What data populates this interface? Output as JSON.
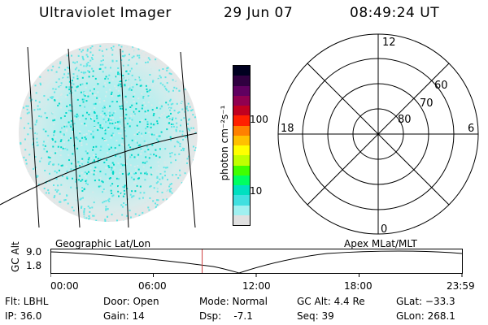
{
  "header": {
    "instrument": "Ultraviolet Imager",
    "date": "29 Jun 07",
    "time": "08:49:24 UT"
  },
  "colorbar": {
    "unit_label": "photon cm⁻²s⁻¹",
    "ticks": [
      "100",
      "10"
    ],
    "colors": [
      "#000020",
      "#300040",
      "#600060",
      "#900050",
      "#c00020",
      "#ff2000",
      "#ff8000",
      "#ffc000",
      "#ffff00",
      "#c0ff00",
      "#40ff00",
      "#00ff60",
      "#00e0c0",
      "#40e0e0",
      "#a0f0f0",
      "#e0e0e0"
    ]
  },
  "polar_plot": {
    "mlt_labels": {
      "top": "12",
      "left": "18",
      "right": "6",
      "bottom": "0"
    },
    "lat_labels": [
      "60",
      "70",
      "80"
    ]
  },
  "altitude_plot": {
    "left_title": "Geographic Lat/Lon",
    "right_title": "Apex MLat/MLT",
    "ylabel": "GC Alt",
    "y_ticks": [
      "9.0",
      "1.8"
    ],
    "x_ticks": [
      "00:00",
      "06:00",
      "12:00",
      "18:00",
      "23:59"
    ],
    "current_time_fraction": 0.3677
  },
  "status": {
    "flt": "Flt: LBHL",
    "ip": "IP: 36.0",
    "door": "Door: Open",
    "gain": "Gain: 14",
    "mode": "Mode: Normal",
    "dsp": "Dsp:    -7.1",
    "gc_alt": "GC Alt: 4.4 Re",
    "seq": "Seq: 39",
    "glat": "GLat: −33.3",
    "glon": "GLon: 268.1"
  }
}
